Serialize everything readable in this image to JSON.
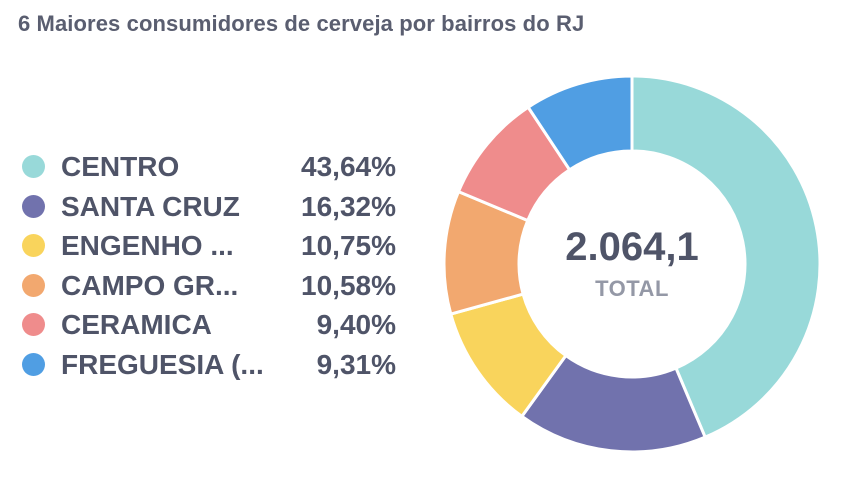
{
  "title": "6 Maiores consumidores de cerveja por bairros do RJ",
  "chart_data": {
    "type": "pie",
    "donut": true,
    "title": "6 Maiores consumidores de cerveja por bairros do RJ",
    "total": "2.064,1",
    "total_label": "TOTAL",
    "legend_position": "left",
    "categories": [
      "CENTRO",
      "SANTA CRUZ",
      "ENGENHO ...",
      "CAMPO GR...",
      "CERAMICA",
      "FREGUESIA (..."
    ],
    "values": [
      43.64,
      16.32,
      10.75,
      10.58,
      9.4,
      9.31
    ],
    "value_labels": [
      "43,64%",
      "16,32%",
      "10,75%",
      "10,58%",
      "9,40%",
      "9,31%"
    ],
    "colors": [
      "#98D9D9",
      "#7172AD",
      "#F9D45C",
      "#F2A86F",
      "#EF8C8C",
      "#509EE3"
    ]
  }
}
